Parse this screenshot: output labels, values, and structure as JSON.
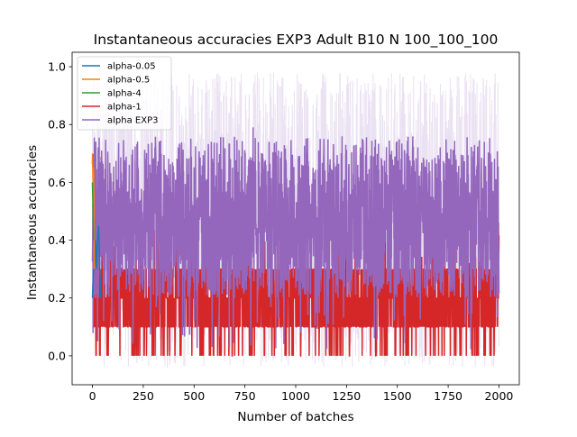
{
  "chart_data": {
    "type": "line",
    "title": "Instantaneous accuracies EXP3 Adult B10 N 100_100_100",
    "xlabel": "Number of batches",
    "ylabel": "Instantaneous accuracies",
    "xlim": [
      -100,
      2100
    ],
    "ylim": [
      -0.1,
      1.05
    ],
    "xticks": [
      0,
      250,
      500,
      750,
      1000,
      1250,
      1500,
      1750,
      2000
    ],
    "yticks": [
      0.0,
      0.2,
      0.4,
      0.6,
      0.8,
      1.0
    ],
    "xtick_labels": [
      "0",
      "250",
      "500",
      "750",
      "1000",
      "1250",
      "1500",
      "1750",
      "2000"
    ],
    "ytick_labels": [
      "0.0",
      "0.2",
      "0.4",
      "0.6",
      "0.8",
      "1.0"
    ],
    "grid": false,
    "legend_position": "upper-left",
    "n_batches": 2000,
    "series": [
      {
        "name": "alpha-0.05",
        "color": "#1f77b4",
        "x": [
          0,
          5,
          10,
          15,
          20,
          25,
          30,
          33,
          36,
          40
        ],
        "y": [
          0.2,
          0.3,
          0.3,
          0.4,
          0.3,
          0.4,
          0.45,
          0.4,
          0.3,
          0.2
        ]
      },
      {
        "name": "alpha-0.5",
        "color": "#ff7f0e",
        "x": [
          0,
          3,
          6,
          9
        ],
        "y": [
          0.7,
          0.6,
          0.65,
          0.3
        ]
      },
      {
        "name": "alpha-4",
        "color": "#2ca02c",
        "x": [
          0,
          3,
          6
        ],
        "y": [
          0.6,
          0.5,
          0.4
        ]
      },
      {
        "name": "alpha-1",
        "color": "#d62728",
        "x_range": [
          0,
          2000
        ],
        "level_min": 0.0,
        "level_max": 0.7,
        "typical_min": 0.1,
        "typical_max": 0.3,
        "early_peak": 0.7
      },
      {
        "name": "alpha EXP3",
        "color": "#9467bd",
        "x_range": [
          0,
          2000
        ],
        "band_min": -0.04,
        "band_max": 0.98,
        "dense_min": 0.2,
        "dense_max": 0.7,
        "peak": 0.79,
        "peak_x": 790
      }
    ]
  }
}
